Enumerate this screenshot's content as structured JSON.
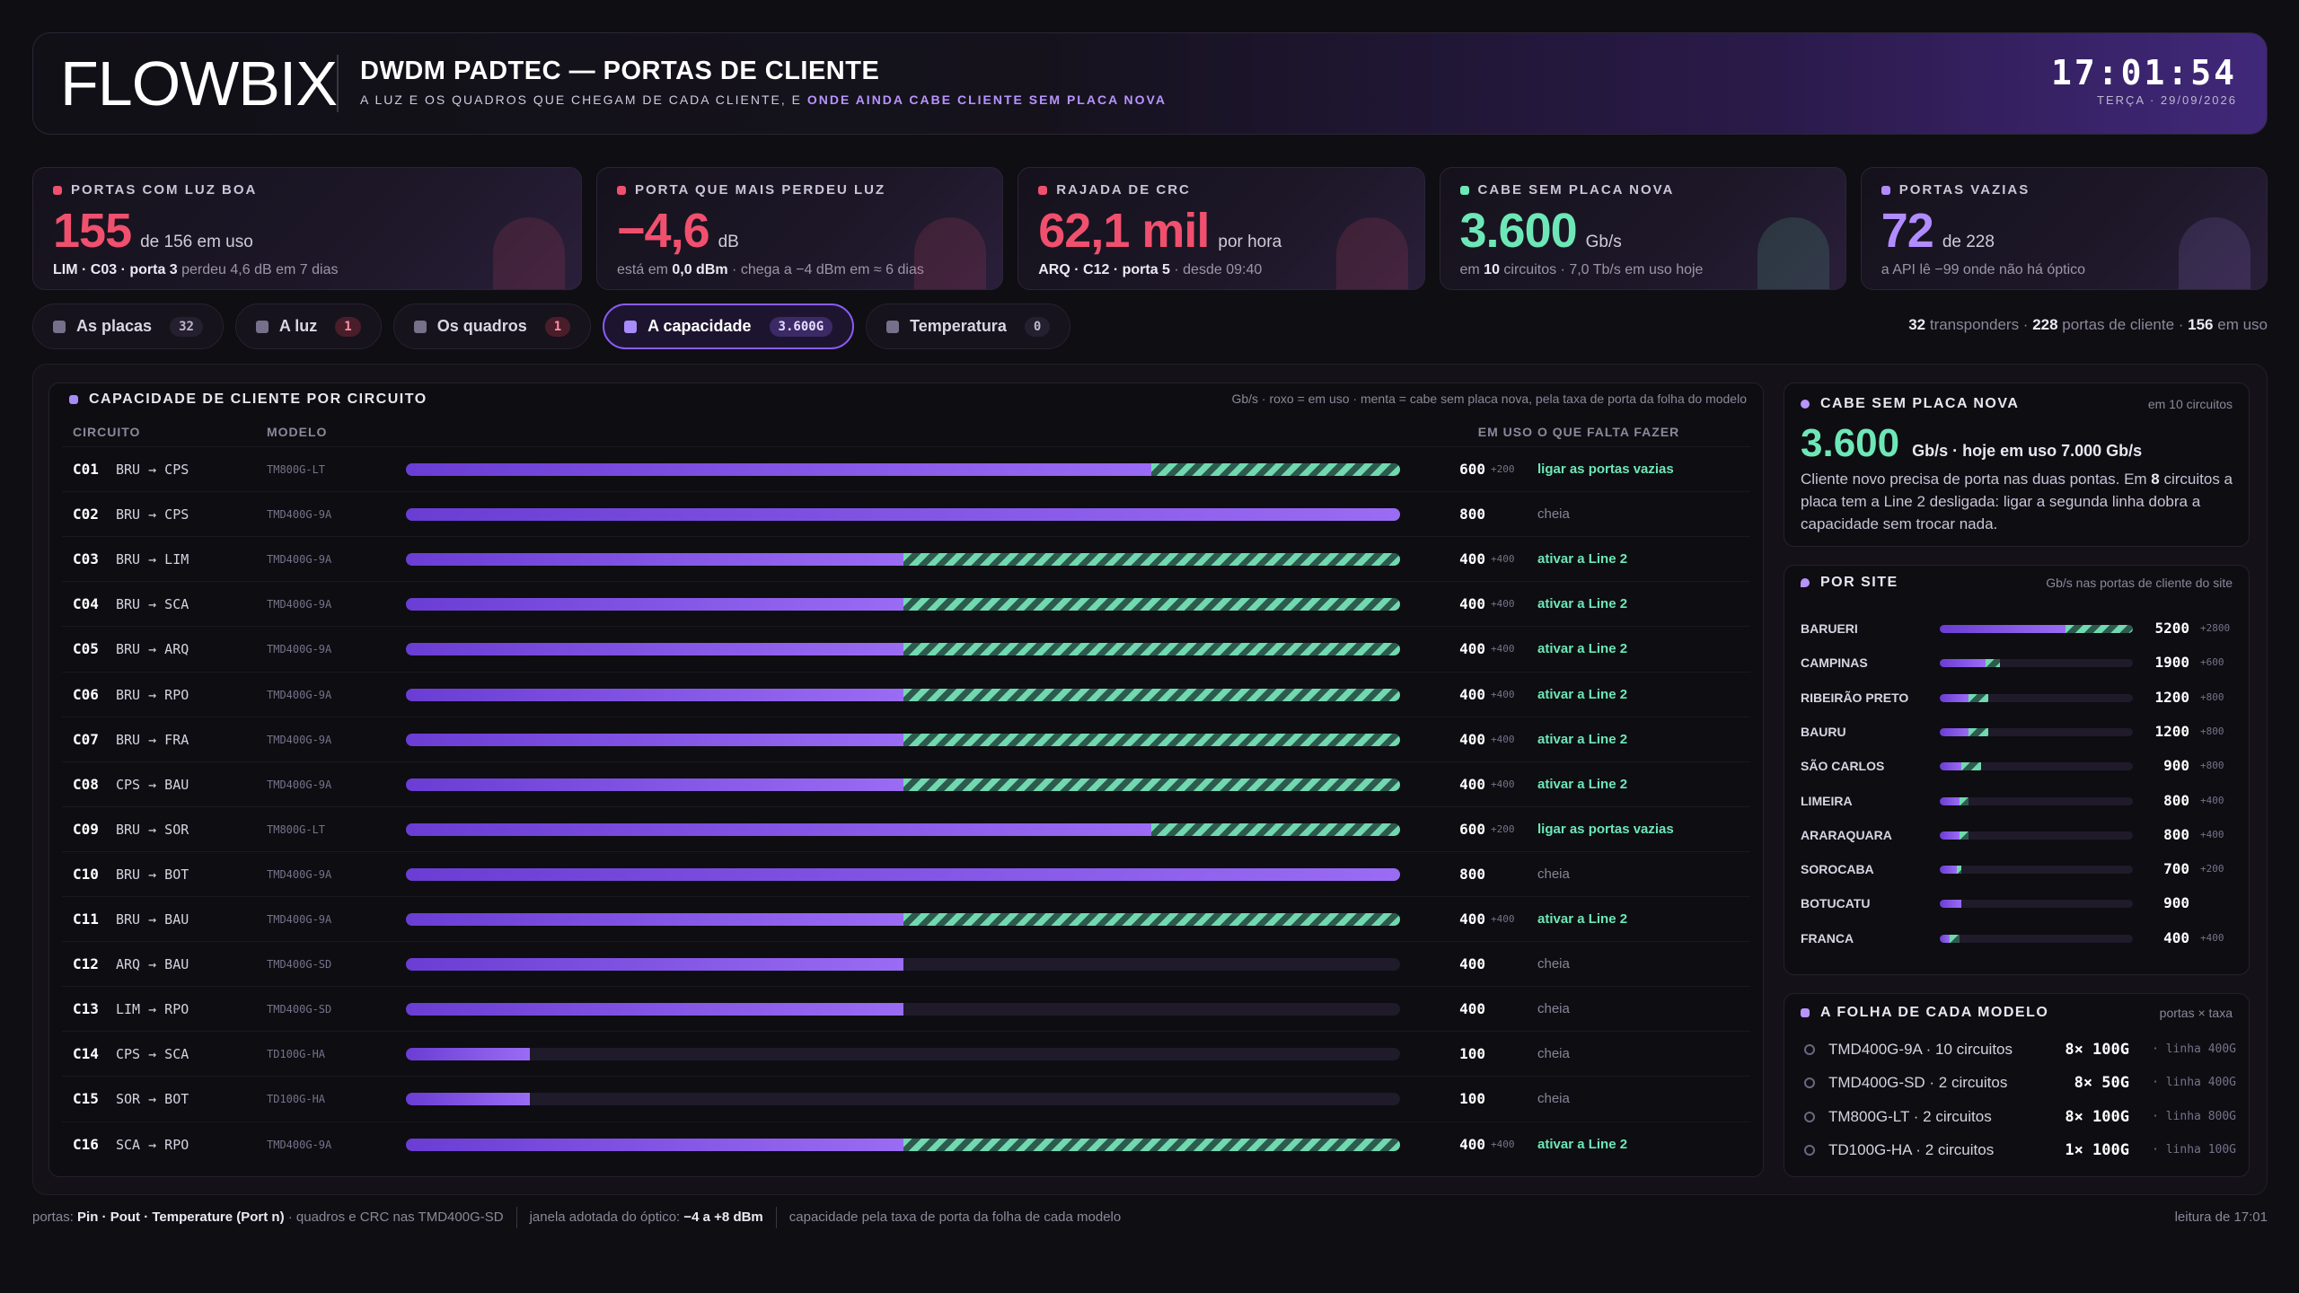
{
  "header": {
    "brand": "FLOWBIX",
    "title": "DWDM PADTEC — PORTAS DE CLIENTE",
    "subtitle": [
      {
        "t": "A LUZ E OS QUADROS QUE CHEGAM DE CADA CLIENTE, E "
      },
      {
        "t": "ONDE AINDA CABE CLIENTE SEM PLACA NOVA",
        "hl": true
      }
    ],
    "clock": "17:01:54",
    "date": "TERÇA · 29/09/2026"
  },
  "kpis": [
    {
      "label": "PORTAS COM LUZ BOA",
      "value": "155",
      "unit": "de 156 em uso",
      "tone": "red",
      "note": [
        {
          "t": "LIM · C03 · porta 3",
          "b": true
        },
        {
          "t": " perdeu 4,6 dB em 7 dias"
        }
      ]
    },
    {
      "label": "PORTA QUE MAIS PERDEU LUZ",
      "value": "−4,6",
      "unit": "dB",
      "tone": "red",
      "note": [
        {
          "t": "está em "
        },
        {
          "t": "0,0 dBm",
          "b": true
        },
        {
          "t": " · chega a −4 dBm em ≈ 6 dias"
        }
      ]
    },
    {
      "label": "RAJADA DE CRC",
      "value": "62,1 mil",
      "unit": "por hora",
      "tone": "red",
      "note": [
        {
          "t": "ARQ · C12 · porta 5",
          "b": true
        },
        {
          "t": " · desde 09:40"
        }
      ]
    },
    {
      "label": "CABE SEM PLACA NOVA",
      "value": "3.600",
      "unit": "Gb/s",
      "tone": "mint",
      "note": [
        {
          "t": "em "
        },
        {
          "t": "10",
          "b": true
        },
        {
          "t": " circuitos · 7,0 Tb/s em uso hoje"
        }
      ]
    },
    {
      "label": "PORTAS VAZIAS",
      "value": "72",
      "unit": "de 228",
      "tone": "purple",
      "note": [
        {
          "t": "a API lê −99 onde não há óptico"
        }
      ]
    }
  ],
  "tabs": [
    {
      "label": "As placas",
      "count": "32"
    },
    {
      "label": "A luz",
      "count": "1",
      "tone": "red"
    },
    {
      "label": "Os quadros",
      "count": "1",
      "tone": "red"
    },
    {
      "label": "A capacidade",
      "count": "3.600G",
      "active": true
    },
    {
      "label": "Temperatura",
      "count": "0"
    }
  ],
  "status": [
    {
      "t": "32",
      "b": true
    },
    {
      "t": " transponders · "
    },
    {
      "t": "228",
      "b": true
    },
    {
      "t": " portas de cliente · "
    },
    {
      "t": "156",
      "b": true
    },
    {
      "t": " em uso"
    }
  ],
  "circuits": {
    "title": "CAPACIDADE DE CLIENTE POR CIRCUITO",
    "note": "Gb/s · roxo = em uso · menta = cabe sem placa nova, pela taxa de porta da folha do modelo",
    "columns": [
      "CIRCUITO",
      "MODELO",
      "EM USO",
      "O QUE FALTA FAZER"
    ],
    "rows": [
      {
        "id": "C01",
        "route": "BRU → CPS",
        "model": "TM800G-LT",
        "used": 600,
        "free": 200,
        "free_label": "+200",
        "action": "ligar as portas vazias"
      },
      {
        "id": "C02",
        "route": "BRU → CPS",
        "model": "TMD400G-9A",
        "used": 800,
        "action": "cheia"
      },
      {
        "id": "C03",
        "route": "BRU → LIM",
        "model": "TMD400G-9A",
        "used": 400,
        "free": 400,
        "free_label": "+400",
        "action": "ativar a Line 2"
      },
      {
        "id": "C04",
        "route": "BRU → SCA",
        "model": "TMD400G-9A",
        "used": 400,
        "free": 400,
        "free_label": "+400",
        "action": "ativar a Line 2"
      },
      {
        "id": "C05",
        "route": "BRU → ARQ",
        "model": "TMD400G-9A",
        "used": 400,
        "free": 400,
        "free_label": "+400",
        "action": "ativar a Line 2"
      },
      {
        "id": "C06",
        "route": "BRU → RPO",
        "model": "TMD400G-9A",
        "used": 400,
        "free": 400,
        "free_label": "+400",
        "action": "ativar a Line 2"
      },
      {
        "id": "C07",
        "route": "BRU → FRA",
        "model": "TMD400G-9A",
        "used": 400,
        "free": 400,
        "free_label": "+400",
        "action": "ativar a Line 2"
      },
      {
        "id": "C08",
        "route": "CPS → BAU",
        "model": "TMD400G-9A",
        "used": 400,
        "free": 400,
        "free_label": "+400",
        "action": "ativar a Line 2"
      },
      {
        "id": "C09",
        "route": "BRU → SOR",
        "model": "TM800G-LT",
        "used": 600,
        "free": 200,
        "free_label": "+200",
        "action": "ligar as portas vazias"
      },
      {
        "id": "C10",
        "route": "BRU → BOT",
        "model": "TMD400G-9A",
        "used": 800,
        "action": "cheia"
      },
      {
        "id": "C11",
        "route": "BRU → BAU",
        "model": "TMD400G-9A",
        "used": 400,
        "free": 400,
        "free_label": "+400",
        "action": "ativar a Line 2"
      },
      {
        "id": "C12",
        "route": "ARQ → BAU",
        "model": "TMD400G-SD",
        "used": 400,
        "action": "cheia"
      },
      {
        "id": "C13",
        "route": "LIM → RPO",
        "model": "TMD400G-SD",
        "used": 400,
        "action": "cheia"
      },
      {
        "id": "C14",
        "route": "CPS → SCA",
        "model": "TD100G-HA",
        "used": 100,
        "action": "cheia"
      },
      {
        "id": "C15",
        "route": "SOR → BOT",
        "model": "TD100G-HA",
        "used": 100,
        "action": "cheia"
      },
      {
        "id": "C16",
        "route": "SCA → RPO",
        "model": "TMD400G-9A",
        "used": 400,
        "free": 400,
        "free_label": "+400",
        "action": "ativar a Line 2"
      }
    ]
  },
  "capacity": {
    "title": "CABE SEM PLACA NOVA",
    "aside": "em 10 circuitos",
    "value": "3.600",
    "unit": "Gb/s · hoje em uso 7.000 Gb/s",
    "text": [
      {
        "t": "Cliente novo precisa de porta nas duas pontas. Em "
      },
      {
        "t": "8",
        "b": true
      },
      {
        "t": " circuitos a placa tem a Line 2 desligada: ligar a segunda linha dobra a capacidade sem trocar nada."
      }
    ]
  },
  "sites": {
    "title": "POR SITE",
    "aside": "Gb/s nas portas de cliente do site",
    "rows": [
      {
        "name": "BARUERI",
        "used": 5200,
        "free": 2800,
        "free_label": "+2800"
      },
      {
        "name": "CAMPINAS",
        "used": 1900,
        "free": 600,
        "free_label": "+600"
      },
      {
        "name": "RIBEIRÃO PRETO",
        "used": 1200,
        "free": 800,
        "free_label": "+800"
      },
      {
        "name": "BAURU",
        "used": 1200,
        "free": 800,
        "free_label": "+800"
      },
      {
        "name": "SÃO CARLOS",
        "used": 900,
        "free": 800,
        "free_label": "+800"
      },
      {
        "name": "LIMEIRA",
        "used": 800,
        "free": 400,
        "free_label": "+400"
      },
      {
        "name": "ARARAQUARA",
        "used": 800,
        "free": 400,
        "free_label": "+400"
      },
      {
        "name": "SOROCABA",
        "used": 700,
        "free": 200,
        "free_label": "+200"
      },
      {
        "name": "BOTUCATU",
        "used": 900
      },
      {
        "name": "FRANCA",
        "used": 400,
        "free": 400,
        "free_label": "+400"
      }
    ]
  },
  "models": {
    "title": "A FOLHA DE CADA MODELO",
    "aside": "portas × taxa",
    "rows": [
      {
        "name": "TMD400G-9A · 10 circuitos",
        "ports": "8× 100G",
        "line": "· linha 400G"
      },
      {
        "name": "TMD400G-SD · 2 circuitos",
        "ports": "8× 50G",
        "line": "· linha 400G"
      },
      {
        "name": "TM800G-LT · 2 circuitos",
        "ports": "8× 100G",
        "line": "· linha 800G"
      },
      {
        "name": "TD100G-HA · 2 circuitos",
        "ports": "1× 100G",
        "line": "· linha 100G"
      }
    ]
  },
  "footer": {
    "items": [
      [
        {
          "t": "portas: "
        },
        {
          "t": "Pin · Pout · Temperature (Port n)",
          "b": true
        },
        {
          "t": " · quadros e CRC nas TMD400G-SD"
        }
      ],
      [
        {
          "t": "janela adotada do óptico: "
        },
        {
          "t": "−4 a +8 dBm",
          "b": true
        }
      ],
      [
        {
          "t": "capacidade pela taxa de porta da folha de cada modelo"
        }
      ]
    ],
    "right": "leitura de 17:01"
  }
}
